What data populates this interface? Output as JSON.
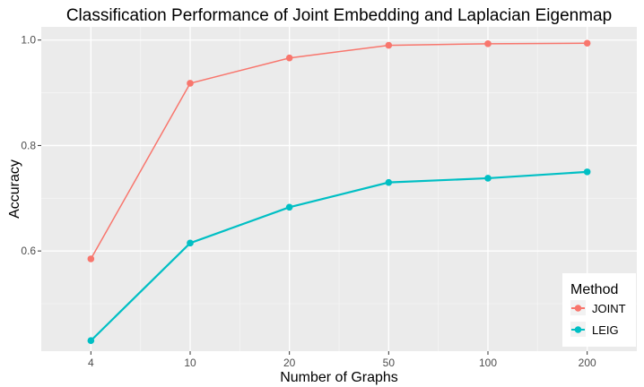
{
  "chart_data": {
    "type": "line",
    "title": "Classification Performance of Joint Embedding and Laplacian Eigenmap",
    "xlabel": "Number of Graphs",
    "ylabel": "Accuracy",
    "categories": [
      "4",
      "10",
      "20",
      "50",
      "100",
      "200"
    ],
    "ylim": [
      0.41,
      1.025
    ],
    "yticks": [
      0.6,
      0.8,
      1.0
    ],
    "ytick_labels": [
      "0.6",
      "0.8",
      "1.0"
    ],
    "grid": true,
    "legend": {
      "title": "Method",
      "position": "bottom-right"
    },
    "series": [
      {
        "name": "JOINT",
        "color": "#F8766D",
        "values": [
          0.585,
          0.918,
          0.966,
          0.99,
          0.993,
          0.994
        ]
      },
      {
        "name": "LEIG",
        "color": "#00BFC4",
        "values": [
          0.43,
          0.615,
          0.683,
          0.73,
          0.738,
          0.75
        ]
      }
    ]
  }
}
